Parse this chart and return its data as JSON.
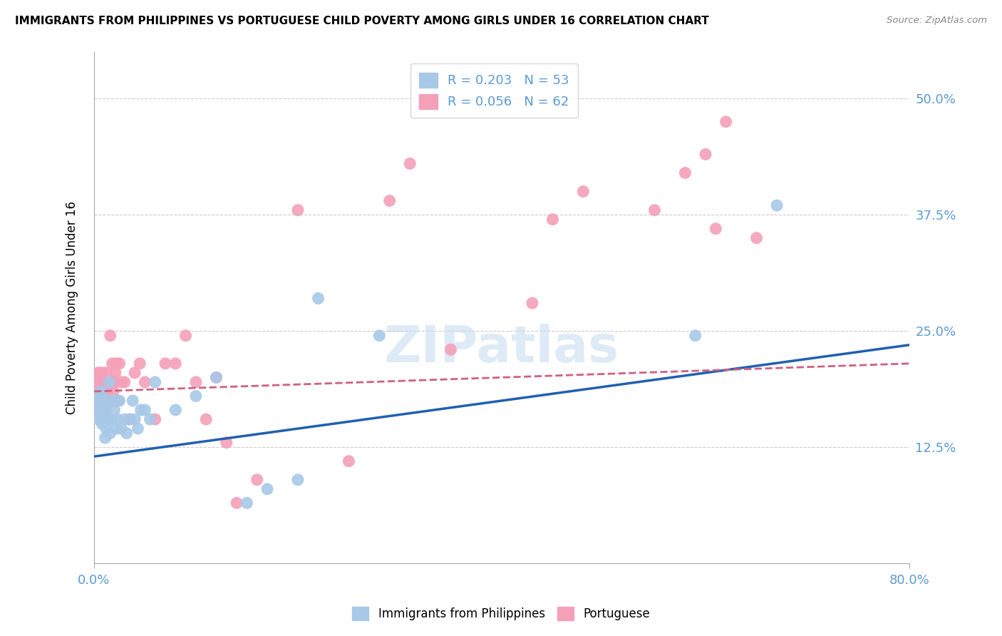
{
  "title": "IMMIGRANTS FROM PHILIPPINES VS PORTUGUESE CHILD POVERTY AMONG GIRLS UNDER 16 CORRELATION CHART",
  "source": "Source: ZipAtlas.com",
  "ylabel": "Child Poverty Among Girls Under 16",
  "bottom_legend": [
    "Immigrants from Philippines",
    "Portuguese"
  ],
  "blue_color": "#a8c8e8",
  "pink_color": "#f4a0b8",
  "blue_line_color": "#2060b0",
  "pink_line_color": "#d06080",
  "watermark": "ZIPatlas",
  "legend_blue_label": "R = 0.203   N = 53",
  "legend_pink_label": "R = 0.056   N = 62",
  "philippines_x": [
    0.001,
    0.002,
    0.003,
    0.004,
    0.004,
    0.005,
    0.005,
    0.006,
    0.006,
    0.007,
    0.007,
    0.008,
    0.008,
    0.009,
    0.009,
    0.01,
    0.01,
    0.011,
    0.011,
    0.012,
    0.012,
    0.013,
    0.014,
    0.015,
    0.016,
    0.017,
    0.018,
    0.02,
    0.021,
    0.022,
    0.023,
    0.025,
    0.027,
    0.03,
    0.032,
    0.035,
    0.038,
    0.04,
    0.043,
    0.046,
    0.05,
    0.055,
    0.06,
    0.08,
    0.1,
    0.12,
    0.15,
    0.17,
    0.2,
    0.22,
    0.28,
    0.59,
    0.67
  ],
  "philippines_y": [
    0.175,
    0.18,
    0.165,
    0.155,
    0.17,
    0.16,
    0.18,
    0.175,
    0.165,
    0.155,
    0.185,
    0.15,
    0.17,
    0.165,
    0.155,
    0.165,
    0.175,
    0.165,
    0.135,
    0.145,
    0.155,
    0.175,
    0.155,
    0.195,
    0.14,
    0.155,
    0.175,
    0.165,
    0.175,
    0.145,
    0.155,
    0.175,
    0.145,
    0.155,
    0.14,
    0.155,
    0.175,
    0.155,
    0.145,
    0.165,
    0.165,
    0.155,
    0.195,
    0.165,
    0.18,
    0.2,
    0.065,
    0.08,
    0.09,
    0.285,
    0.245,
    0.245,
    0.385
  ],
  "portuguese_x": [
    0.001,
    0.002,
    0.003,
    0.004,
    0.005,
    0.005,
    0.006,
    0.007,
    0.007,
    0.008,
    0.008,
    0.009,
    0.009,
    0.01,
    0.01,
    0.011,
    0.011,
    0.012,
    0.012,
    0.013,
    0.013,
    0.014,
    0.015,
    0.016,
    0.017,
    0.018,
    0.019,
    0.02,
    0.021,
    0.022,
    0.023,
    0.025,
    0.027,
    0.03,
    0.035,
    0.04,
    0.045,
    0.05,
    0.06,
    0.07,
    0.08,
    0.09,
    0.1,
    0.11,
    0.12,
    0.13,
    0.14,
    0.16,
    0.2,
    0.25,
    0.29,
    0.31,
    0.35,
    0.43,
    0.45,
    0.48,
    0.55,
    0.58,
    0.6,
    0.61,
    0.62,
    0.65
  ],
  "portuguese_y": [
    0.185,
    0.175,
    0.195,
    0.205,
    0.185,
    0.175,
    0.205,
    0.175,
    0.195,
    0.185,
    0.205,
    0.175,
    0.195,
    0.165,
    0.185,
    0.175,
    0.195,
    0.165,
    0.205,
    0.185,
    0.175,
    0.195,
    0.175,
    0.245,
    0.195,
    0.215,
    0.185,
    0.195,
    0.205,
    0.215,
    0.175,
    0.215,
    0.195,
    0.195,
    0.155,
    0.205,
    0.215,
    0.195,
    0.155,
    0.215,
    0.215,
    0.245,
    0.195,
    0.155,
    0.2,
    0.13,
    0.065,
    0.09,
    0.38,
    0.11,
    0.39,
    0.43,
    0.23,
    0.28,
    0.37,
    0.4,
    0.38,
    0.42,
    0.44,
    0.36,
    0.475,
    0.35
  ],
  "xlim": [
    0.0,
    0.8
  ],
  "ylim": [
    0.0,
    0.55
  ],
  "ytick_vals": [
    0.125,
    0.25,
    0.375,
    0.5
  ],
  "ytick_labels": [
    "12.5%",
    "25.0%",
    "37.5%",
    "50.0%"
  ],
  "blue_trend_x0": 0.0,
  "blue_trend_y0": 0.115,
  "blue_trend_x1": 0.8,
  "blue_trend_y1": 0.235,
  "pink_trend_x0": 0.0,
  "pink_trend_y0": 0.185,
  "pink_trend_x1": 0.8,
  "pink_trend_y1": 0.215
}
